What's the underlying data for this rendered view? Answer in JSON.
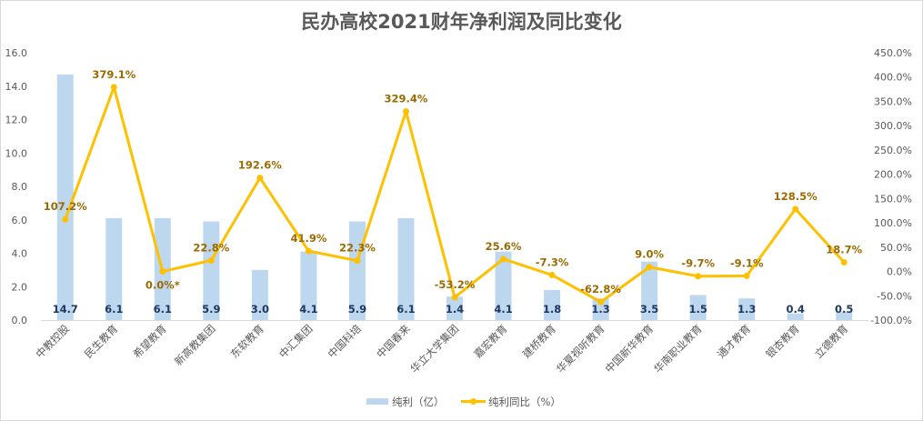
{
  "chart_data": {
    "type": "bar+line",
    "title": "民办高校2021财年净利润及同比变化",
    "categories": [
      "中教控股",
      "民生教育",
      "希望教育",
      "新高教集团",
      "东软教育",
      "中汇集团",
      "中国科培",
      "中国春来",
      "华立大学集团",
      "嘉宏教育",
      "建桥教育",
      "华夏视听教育",
      "中国新华教育",
      "华南职业教育",
      "通才教育",
      "银杏教育",
      "立德教育"
    ],
    "series": [
      {
        "name": "纯利（亿）",
        "type": "bar",
        "axis": "left",
        "color": "#BDD7EE",
        "values": [
          14.7,
          6.1,
          6.1,
          5.9,
          3.0,
          4.1,
          5.9,
          6.1,
          1.4,
          4.1,
          1.8,
          1.3,
          3.5,
          1.5,
          1.3,
          0.4,
          0.5
        ],
        "labels": [
          "14.7",
          "6.1",
          "6.1",
          "5.9",
          "3.0",
          "4.1",
          "5.9",
          "6.1",
          "1.4",
          "4.1",
          "1.8",
          "1.3",
          "3.5",
          "1.5",
          "1.3",
          "0.4",
          "0.5"
        ]
      },
      {
        "name": "纯利同比（%）",
        "type": "line",
        "axis": "right",
        "color": "#FFC000",
        "values": [
          107.2,
          379.1,
          0.0,
          22.8,
          192.6,
          41.9,
          22.3,
          329.4,
          -53.2,
          25.6,
          -7.3,
          -62.8,
          9.0,
          -9.7,
          -9.1,
          128.5,
          18.7
        ],
        "labels": [
          "107.2%",
          "379.1%",
          "0.0%*",
          "22.8%",
          "192.6%",
          "41.9%",
          "22.3%",
          "329.4%",
          "-53.2%",
          "25.6%",
          "-7.3%",
          "-62.8%",
          "9.0%",
          "-9.7%",
          "-9.1%",
          "128.5%",
          "18.7%"
        ]
      }
    ],
    "y_left": {
      "range": [
        0,
        16
      ],
      "ticks": [
        "0.0",
        "2.0",
        "4.0",
        "6.0",
        "8.0",
        "10.0",
        "12.0",
        "14.0",
        "16.0"
      ]
    },
    "y_right": {
      "range": [
        -100,
        450
      ],
      "ticks": [
        "-100.0%",
        "-50.0%",
        "0.0%",
        "50.0%",
        "100.0%",
        "150.0%",
        "200.0%",
        "250.0%",
        "300.0%",
        "350.0%",
        "400.0%",
        "450.0%"
      ]
    },
    "grid": false,
    "legend": "bottom"
  }
}
